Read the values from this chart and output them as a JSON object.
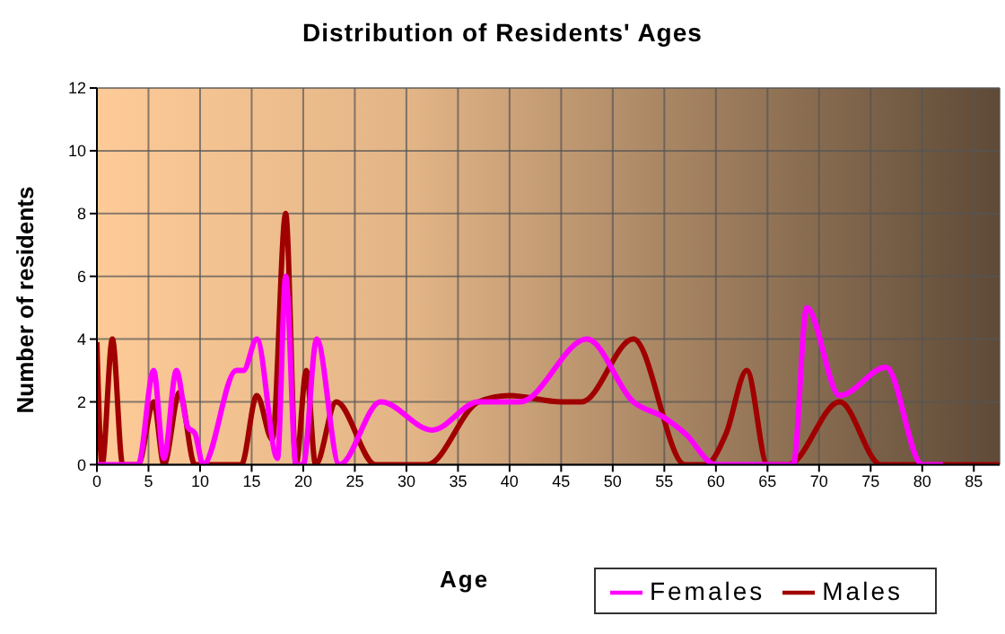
{
  "chart_data": {
    "type": "line",
    "title": "Distribution of Residents' Ages",
    "xlabel": "Age",
    "ylabel": "Number of residents",
    "xlim": [
      0,
      87.5
    ],
    "xticks": [
      0,
      5,
      10,
      15,
      20,
      25,
      30,
      35,
      40,
      45,
      50,
      55,
      60,
      65,
      70,
      75,
      80,
      85
    ],
    "ylim": [
      0,
      12
    ],
    "yticks": [
      0,
      2,
      4,
      6,
      8,
      10,
      12
    ],
    "grid": true,
    "legend": "bottom right",
    "marker": "none",
    "line_style": "solid",
    "series": [
      {
        "name": "Males",
        "color": "#a00000",
        "x": [
          0,
          0.5,
          1.5,
          2.5,
          4,
          5.5,
          6.5,
          8,
          9.5,
          10,
          14,
          15.5,
          17,
          18.3,
          19.3,
          20.3,
          21.2,
          23.2,
          27,
          32,
          37,
          40,
          45,
          47,
          52,
          57,
          59,
          61,
          63,
          65,
          67,
          72,
          76,
          80,
          87.5
        ],
        "values": [
          3.9,
          0,
          4,
          0,
          0,
          2,
          0,
          2.3,
          0,
          0,
          0,
          2.2,
          0.8,
          8,
          0,
          3,
          0,
          2,
          0,
          0,
          2,
          2.2,
          2,
          2,
          4,
          0,
          0,
          1,
          3,
          0,
          0,
          2,
          0,
          0,
          0
        ]
      },
      {
        "name": "Females",
        "color": "#ff00ff",
        "x": [
          0,
          4,
          5.5,
          6.5,
          7.7,
          8.8,
          9.5,
          10.3,
          13.5,
          14.2,
          15.5,
          17.5,
          18.3,
          19.3,
          20,
          21.3,
          23.5,
          27.5,
          32.5,
          37,
          41,
          47.5,
          52,
          55,
          57,
          60,
          65,
          67.5,
          68.8,
          72,
          76.5,
          80,
          82
        ],
        "values": [
          0,
          0,
          3,
          0.2,
          3,
          1.2,
          1,
          0,
          3,
          3,
          4,
          0.2,
          6,
          0,
          0,
          4,
          0,
          2,
          1.1,
          2,
          2,
          4,
          2,
          1.5,
          1,
          0,
          0,
          0,
          5,
          2.2,
          3.1,
          0,
          0
        ]
      }
    ]
  }
}
